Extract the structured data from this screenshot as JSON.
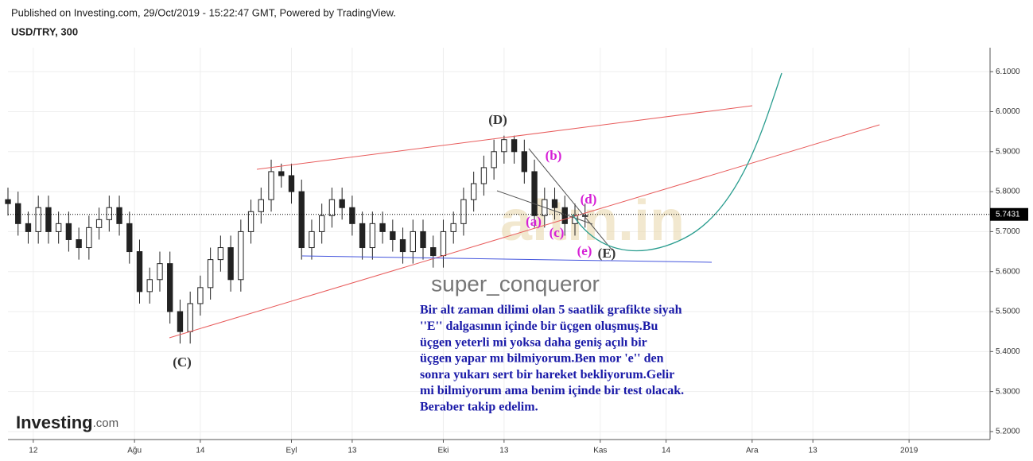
{
  "header": {
    "published": "Published on Investing.com, 29/Oct/2019 - 15:22:47 GMT, Powered by TradingView.",
    "symbol": "USD/TRY, 300"
  },
  "chart_data": {
    "type": "candlestick",
    "x": [
      6,
      8,
      10,
      12,
      14,
      16,
      18,
      20,
      22,
      24,
      26,
      28,
      30,
      32,
      34,
      36,
      38,
      40,
      42,
      44,
      46,
      48,
      50,
      52,
      54,
      56,
      58,
      60,
      62,
      64,
      66,
      68,
      70,
      72,
      74,
      76,
      78,
      80,
      82,
      84,
      86,
      88,
      90,
      92,
      94,
      96,
      98,
      100,
      102,
      104,
      106,
      108,
      110,
      112,
      114,
      116,
      118,
      120
    ],
    "open": [
      5.78,
      5.77,
      5.72,
      5.7,
      5.76,
      5.7,
      5.72,
      5.68,
      5.66,
      5.71,
      5.73,
      5.76,
      5.72,
      5.65,
      5.55,
      5.58,
      5.62,
      5.5,
      5.45,
      5.52,
      5.56,
      5.63,
      5.66,
      5.58,
      5.7,
      5.75,
      5.78,
      5.85,
      5.84,
      5.8,
      5.66,
      5.7,
      5.74,
      5.78,
      5.76,
      5.72,
      5.66,
      5.72,
      5.7,
      5.68,
      5.65,
      5.7,
      5.66,
      5.64,
      5.7,
      5.72,
      5.78,
      5.82,
      5.86,
      5.9,
      5.93,
      5.9,
      5.85,
      5.74,
      5.78,
      5.76,
      5.72,
      5.74
    ],
    "high": [
      5.81,
      5.8,
      5.75,
      5.79,
      5.79,
      5.75,
      5.75,
      5.71,
      5.74,
      5.76,
      5.79,
      5.79,
      5.75,
      5.68,
      5.61,
      5.65,
      5.65,
      5.53,
      5.55,
      5.59,
      5.66,
      5.69,
      5.69,
      5.73,
      5.78,
      5.81,
      5.88,
      5.87,
      5.87,
      5.83,
      5.73,
      5.77,
      5.81,
      5.81,
      5.79,
      5.75,
      5.75,
      5.75,
      5.73,
      5.71,
      5.73,
      5.73,
      5.69,
      5.73,
      5.75,
      5.81,
      5.85,
      5.89,
      5.93,
      5.94,
      5.94,
      5.93,
      5.88,
      5.81,
      5.81,
      5.79,
      5.77,
      5.77
    ],
    "low": [
      5.74,
      5.69,
      5.67,
      5.67,
      5.67,
      5.67,
      5.65,
      5.63,
      5.63,
      5.68,
      5.7,
      5.69,
      5.62,
      5.52,
      5.52,
      5.55,
      5.47,
      5.42,
      5.42,
      5.49,
      5.53,
      5.6,
      5.55,
      5.55,
      5.67,
      5.72,
      5.75,
      5.81,
      5.77,
      5.63,
      5.63,
      5.67,
      5.71,
      5.73,
      5.69,
      5.63,
      5.63,
      5.67,
      5.65,
      5.62,
      5.62,
      5.63,
      5.61,
      5.61,
      5.67,
      5.69,
      5.75,
      5.79,
      5.83,
      5.87,
      5.87,
      5.82,
      5.71,
      5.71,
      5.73,
      5.69,
      5.69,
      5.71
    ],
    "close": [
      5.77,
      5.72,
      5.7,
      5.76,
      5.7,
      5.72,
      5.68,
      5.66,
      5.71,
      5.73,
      5.76,
      5.72,
      5.65,
      5.55,
      5.58,
      5.62,
      5.5,
      5.45,
      5.52,
      5.56,
      5.63,
      5.66,
      5.58,
      5.7,
      5.75,
      5.78,
      5.85,
      5.84,
      5.8,
      5.66,
      5.7,
      5.74,
      5.78,
      5.76,
      5.72,
      5.66,
      5.72,
      5.7,
      5.68,
      5.65,
      5.7,
      5.66,
      5.64,
      5.7,
      5.72,
      5.78,
      5.82,
      5.86,
      5.9,
      5.93,
      5.9,
      5.85,
      5.74,
      5.78,
      5.76,
      5.72,
      5.74,
      5.74
    ],
    "color": "#222222",
    "xlim": [
      6,
      200
    ],
    "xticks": [
      {
        "value": 11,
        "label": "12"
      },
      {
        "value": 31,
        "label": "Ağu"
      },
      {
        "value": 44,
        "label": "14"
      },
      {
        "value": 62,
        "label": "Eyl"
      },
      {
        "value": 74,
        "label": "13"
      },
      {
        "value": 92,
        "label": "Eki"
      },
      {
        "value": 104,
        "label": "13"
      },
      {
        "value": 123,
        "label": "Kas"
      },
      {
        "value": 136,
        "label": "14"
      },
      {
        "value": 153,
        "label": "Ara"
      },
      {
        "value": 165,
        "label": "13"
      },
      {
        "value": 184,
        "label": "2019"
      }
    ],
    "ylim": [
      5.18,
      6.16
    ],
    "yticks": [
      {
        "value": 5.2,
        "label": "5.2000"
      },
      {
        "value": 5.3,
        "label": "5.3000"
      },
      {
        "value": 5.4,
        "label": "5.4000"
      },
      {
        "value": 5.5,
        "label": "5.5000"
      },
      {
        "value": 5.6,
        "label": "5.6000"
      },
      {
        "value": 5.7,
        "label": "5.7000"
      },
      {
        "value": 5.8,
        "label": "5.8000"
      },
      {
        "value": 5.9,
        "label": "5.9000"
      },
      {
        "value": 6.0,
        "label": "6.0000"
      },
      {
        "value": 6.1,
        "label": "6.1000"
      }
    ],
    "last_price": 5.7431,
    "grid": true,
    "annotations": {
      "D": "(D)",
      "C": "(C)",
      "E": "(E)",
      "a": "(a)",
      "b": "(b)",
      "c": "(c)",
      "d": "(d)",
      "e": "(e)"
    },
    "watermark": "super_conqueror",
    "site": "altın.in",
    "brand": "Investing",
    "brand_suffix": ".com",
    "comment": [
      "Bir alt zaman dilimi olan 5 saatlik grafikte siyah",
      "''E'' dalgasının içinde bir üçgen oluşmuş.Bu",
      "üçgen yeterli mi yoksa daha geniş açılı bir",
      "üçgen yapar mı bilmiyorum.Ben mor 'e'' den",
      "sonra yukarı sert bir hareket bekliyorum.Gelir",
      "mi bilmiyorum ama benim içinde bir test olacak.",
      "Beraber takip edelim."
    ]
  }
}
